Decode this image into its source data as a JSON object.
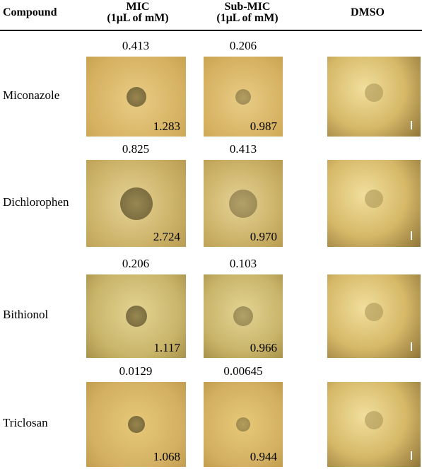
{
  "header": {
    "compound": "Compound",
    "mic": {
      "title": "MIC",
      "unit": "(1μL of mM)"
    },
    "sub_mic": {
      "title": "Sub-MIC",
      "unit": "(1μL of mM)"
    },
    "dmso": "DMSO"
  },
  "rows": [
    {
      "compound": "Miconazole",
      "mic": {
        "concentration": "0.413",
        "zone": "1.283"
      },
      "sub_mic": {
        "concentration": "0.206",
        "zone": "0.987"
      }
    },
    {
      "compound": "Dichlorophen",
      "mic": {
        "concentration": "0.825",
        "zone": "2.724"
      },
      "sub_mic": {
        "concentration": "0.413",
        "zone": "0.970"
      }
    },
    {
      "compound": "Bithionol",
      "mic": {
        "concentration": "0.206",
        "zone": "1.117"
      },
      "sub_mic": {
        "concentration": "0.103",
        "zone": "0.966"
      }
    },
    {
      "compound": "Triclosan",
      "mic": {
        "concentration": "0.0129",
        "zone": "1.068"
      },
      "sub_mic": {
        "concentration": "0.00645",
        "zone": "0.944"
      }
    }
  ]
}
